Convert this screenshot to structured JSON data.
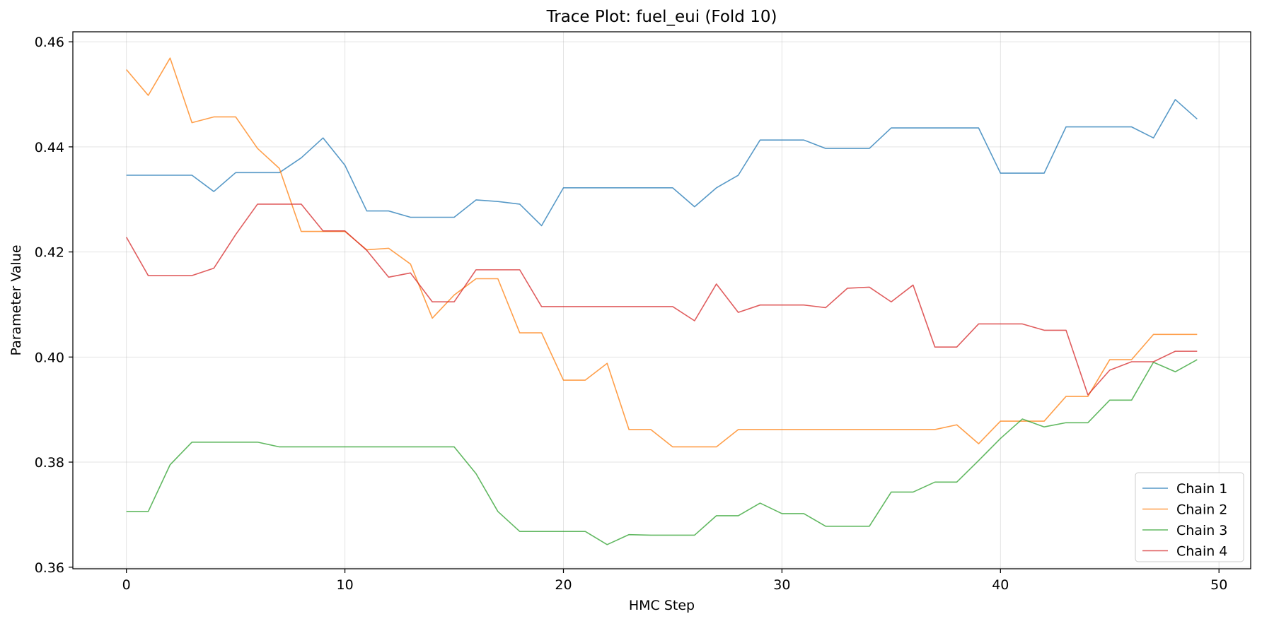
{
  "chart_data": {
    "type": "line",
    "title": "Trace Plot: fuel_eui (Fold 10)",
    "xlabel": "HMC Step",
    "ylabel": "Parameter Value",
    "xlim": [
      -2.45,
      51.45
    ],
    "ylim": [
      0.3597,
      0.4619
    ],
    "xticks": [
      0,
      10,
      20,
      30,
      40,
      50
    ],
    "yticks": [
      0.36,
      0.38,
      0.4,
      0.42,
      0.44,
      0.46
    ],
    "xtick_labels": [
      "0",
      "10",
      "20",
      "30",
      "40",
      "50"
    ],
    "ytick_labels": [
      "0.36",
      "0.38",
      "0.40",
      "0.42",
      "0.44",
      "0.46"
    ],
    "grid": true,
    "legend_position": "lower right",
    "x": [
      0,
      1,
      2,
      3,
      4,
      5,
      6,
      7,
      8,
      9,
      10,
      11,
      12,
      13,
      14,
      15,
      16,
      17,
      18,
      19,
      20,
      21,
      22,
      23,
      24,
      25,
      26,
      27,
      28,
      29,
      30,
      31,
      32,
      33,
      34,
      35,
      36,
      37,
      38,
      39,
      40,
      41,
      42,
      43,
      44,
      45,
      46,
      47,
      48,
      49
    ],
    "series": [
      {
        "name": "Chain 1",
        "color": "#1f77b4",
        "values": [
          0.4346,
          0.4346,
          0.4346,
          0.4346,
          0.4315,
          0.4351,
          0.4351,
          0.4351,
          0.4379,
          0.4417,
          0.4365,
          0.4278,
          0.4278,
          0.4266,
          0.4266,
          0.4266,
          0.4299,
          0.4296,
          0.4291,
          0.425,
          0.4322,
          0.4322,
          0.4322,
          0.4322,
          0.4322,
          0.4322,
          0.4286,
          0.4322,
          0.4346,
          0.4413,
          0.4413,
          0.4413,
          0.4397,
          0.4397,
          0.4397,
          0.4436,
          0.4436,
          0.4436,
          0.4436,
          0.4436,
          0.435,
          0.435,
          0.435,
          0.4438,
          0.4438,
          0.4438,
          0.4438,
          0.4417,
          0.449,
          0.4453
        ]
      },
      {
        "name": "Chain 2",
        "color": "#ff7f0e",
        "values": [
          0.4547,
          0.4498,
          0.4569,
          0.4446,
          0.4457,
          0.4457,
          0.4397,
          0.4359,
          0.4239,
          0.4239,
          0.4239,
          0.4204,
          0.4207,
          0.4177,
          0.4074,
          0.4118,
          0.4149,
          0.4149,
          0.4046,
          0.4046,
          0.3956,
          0.3956,
          0.3988,
          0.3862,
          0.3862,
          0.3829,
          0.3829,
          0.3829,
          0.3862,
          0.3862,
          0.3862,
          0.3862,
          0.3862,
          0.3862,
          0.3862,
          0.3862,
          0.3862,
          0.3862,
          0.3871,
          0.3835,
          0.3878,
          0.3878,
          0.3878,
          0.3925,
          0.3925,
          0.3995,
          0.3995,
          0.4043,
          0.4043,
          0.4043
        ]
      },
      {
        "name": "Chain 3",
        "color": "#2ca02c",
        "values": [
          0.3706,
          0.3706,
          0.3795,
          0.3838,
          0.3838,
          0.3838,
          0.3838,
          0.3829,
          0.3829,
          0.3829,
          0.3829,
          0.3829,
          0.3829,
          0.3829,
          0.3829,
          0.3829,
          0.3778,
          0.3706,
          0.3668,
          0.3668,
          0.3668,
          0.3668,
          0.3643,
          0.3662,
          0.3661,
          0.3661,
          0.3661,
          0.3698,
          0.3698,
          0.3722,
          0.3702,
          0.3702,
          0.3678,
          0.3678,
          0.3678,
          0.3743,
          0.3743,
          0.3762,
          0.3762,
          0.3803,
          0.3845,
          0.3882,
          0.3867,
          0.3875,
          0.3875,
          0.3918,
          0.3918,
          0.399,
          0.3972,
          0.3995
        ]
      },
      {
        "name": "Chain 4",
        "color": "#d62728",
        "values": [
          0.4228,
          0.4155,
          0.4155,
          0.4155,
          0.4169,
          0.4233,
          0.4291,
          0.4291,
          0.4291,
          0.424,
          0.424,
          0.4203,
          0.4152,
          0.416,
          0.4105,
          0.4105,
          0.4166,
          0.4166,
          0.4166,
          0.4096,
          0.4096,
          0.4096,
          0.4096,
          0.4096,
          0.4096,
          0.4096,
          0.4069,
          0.4139,
          0.4085,
          0.4099,
          0.4099,
          0.4099,
          0.4094,
          0.4131,
          0.4133,
          0.4105,
          0.4137,
          0.4019,
          0.4019,
          0.4063,
          0.4063,
          0.4063,
          0.4051,
          0.4051,
          0.3928,
          0.3975,
          0.3991,
          0.3991,
          0.4011,
          0.4011
        ]
      }
    ]
  }
}
